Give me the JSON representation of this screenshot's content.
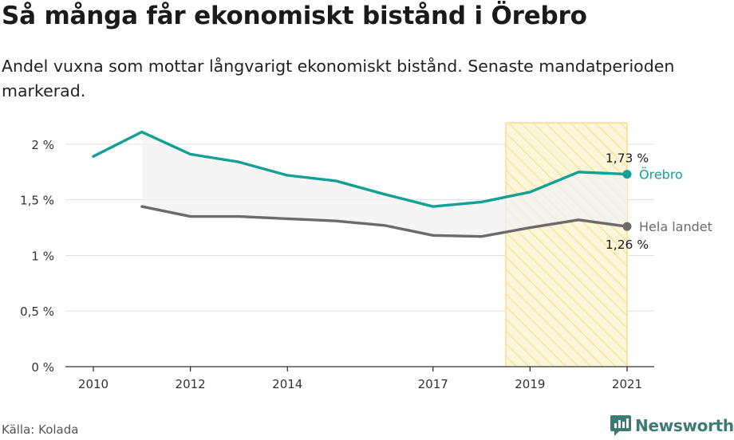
{
  "header": {
    "title": "Så många får ekonomiskt bistånd i Örebro",
    "subtitle": "Andel vuxna som mottar långvarigt ekonomiskt bistånd. Senaste mandatperioden markerad."
  },
  "footer": {
    "source": "Källa: Kolada",
    "brand": "Newsworthy",
    "brand_icon": "newsworthy-logo-icon"
  },
  "colors": {
    "orebro": "#14a095",
    "national": "#6b6b6e",
    "highlight_fill": "#fdf6d8",
    "highlight_stroke": "#f5dc8e",
    "band": "#f2f2f2",
    "grid": "#dddddd",
    "brand": "#3d7a72"
  },
  "chart_data": {
    "type": "line",
    "x": [
      2010,
      2011,
      2012,
      2013,
      2014,
      2015,
      2016,
      2017,
      2018,
      2019,
      2020,
      2021
    ],
    "x_ticks": [
      2010,
      2012,
      2014,
      2017,
      2019,
      2021
    ],
    "xlim": [
      2010,
      2021
    ],
    "ylim": [
      0,
      2.25
    ],
    "y_ticks": [
      0,
      0.5,
      1,
      1.5,
      2
    ],
    "y_tick_labels": [
      "0 %",
      "0,5 %",
      "1 %",
      "1,5 %",
      "2 %"
    ],
    "grid": true,
    "highlight": {
      "from": 2018.5,
      "to": 2021
    },
    "series": [
      {
        "name": "Örebro",
        "values": [
          1.89,
          2.11,
          1.91,
          1.84,
          1.72,
          1.67,
          1.55,
          1.44,
          1.48,
          1.57,
          1.75,
          1.73
        ],
        "end_label": "1,73 %"
      },
      {
        "name": "Hela landet",
        "values": [
          null,
          1.44,
          1.35,
          1.35,
          1.33,
          1.31,
          1.27,
          1.18,
          1.17,
          1.25,
          1.32,
          1.26
        ],
        "end_label": "1,26 %"
      }
    ]
  }
}
